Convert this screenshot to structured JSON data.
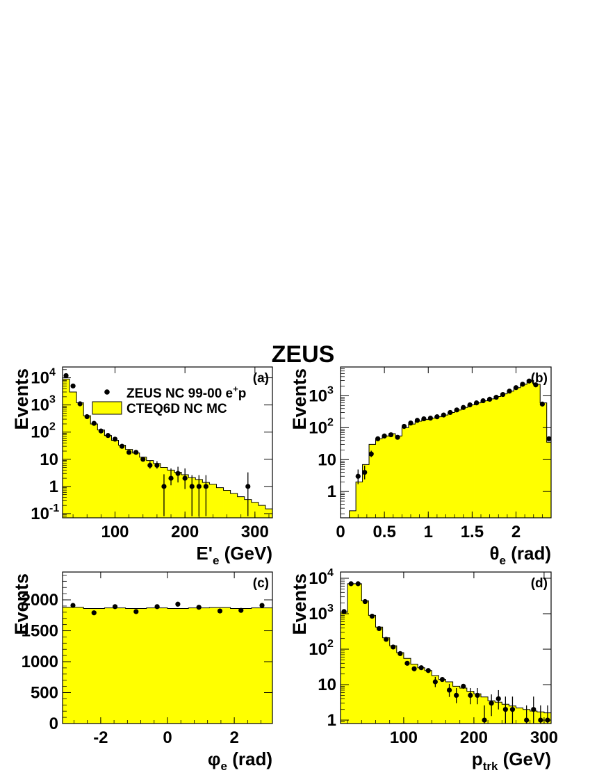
{
  "figure": {
    "title": "ZEUS"
  },
  "colors": {
    "mc_fill": "#ffff00",
    "data": "#000000"
  },
  "chart_data": [
    {
      "id": "a",
      "type": "bar",
      "panel_label": "(a)",
      "xlabel": "E'",
      "xlabel_sub": "e",
      "xlabel_unit": " (GeV)",
      "ylabel": "Events",
      "yscale": "log",
      "xlim": [
        25,
        325
      ],
      "ylim": [
        0.07,
        25000
      ],
      "xticks": [
        100,
        200,
        300
      ],
      "yticks": [
        {
          "v": 0.1,
          "mant": "10",
          "exp": "-1"
        },
        {
          "v": 1,
          "mant": "1",
          "exp": ""
        },
        {
          "v": 10,
          "mant": "10",
          "exp": ""
        },
        {
          "v": 100,
          "mant": "10",
          "exp": "2"
        },
        {
          "v": 1000,
          "mant": "10",
          "exp": "3"
        },
        {
          "v": 10000,
          "mant": "10",
          "exp": "4"
        }
      ],
      "legend": {
        "placement": "top-right",
        "data_label": "ZEUS NC 99-00 e",
        "data_label_sup": "+",
        "data_label_end": "p",
        "mc_label": "CTEQ6D NC MC"
      },
      "mc": {
        "edges": [
          25,
          35,
          45,
          55,
          65,
          75,
          85,
          95,
          105,
          115,
          125,
          135,
          145,
          155,
          165,
          175,
          185,
          195,
          205,
          215,
          225,
          235,
          245,
          255,
          265,
          275,
          285,
          295,
          305,
          315,
          325
        ],
        "values": [
          9000,
          3000,
          1200,
          400,
          200,
          120,
          75,
          50,
          33,
          23,
          17,
          12,
          9,
          7,
          5,
          4,
          3.3,
          2.7,
          2.1,
          1.8,
          1.4,
          1.2,
          0.9,
          0.72,
          0.55,
          0.42,
          0.33,
          0.26,
          0.2,
          0.15
        ]
      },
      "data": {
        "x": [
          30,
          40,
          50,
          60,
          70,
          80,
          90,
          100,
          110,
          120,
          130,
          140,
          150,
          160,
          170,
          180,
          190,
          200,
          210,
          220,
          230,
          290
        ],
        "y": [
          12000,
          5000,
          1100,
          370,
          210,
          110,
          75,
          55,
          30,
          18,
          18,
          10,
          6,
          6,
          1,
          2,
          3,
          2,
          1,
          1,
          1,
          1
        ],
        "err_lo": [
          0,
          0,
          0,
          0,
          0,
          0,
          0,
          0,
          0,
          0,
          0,
          0,
          1.5,
          1.5,
          0.92,
          0.9,
          1.6,
          1.2,
          0.92,
          0.92,
          0.92,
          0.92
        ],
        "err_hi": [
          0,
          0,
          0,
          0,
          0,
          0,
          0,
          0,
          0,
          0,
          0,
          0,
          2.5,
          2.5,
          1.8,
          2.6,
          2.3,
          2.6,
          1.6,
          1.6,
          1.6,
          2.3
        ]
      }
    },
    {
      "id": "b",
      "type": "bar",
      "panel_label": "(b)",
      "xlabel": "θ",
      "xlabel_sub": "e",
      "xlabel_unit": " (rad)",
      "ylabel": "Events",
      "yscale": "log",
      "xlim": [
        0,
        2.4
      ],
      "ylim": [
        0.15,
        8000
      ],
      "xticks": [
        0,
        0.5,
        1,
        1.5,
        2
      ],
      "yticks": [
        {
          "v": 1,
          "mant": "1",
          "exp": ""
        },
        {
          "v": 10,
          "mant": "10",
          "exp": ""
        },
        {
          "v": 100,
          "mant": "10",
          "exp": "2"
        },
        {
          "v": 1000,
          "mant": "10",
          "exp": "3"
        }
      ],
      "mc": {
        "edges": [
          0.1,
          0.175,
          0.25,
          0.325,
          0.4,
          0.475,
          0.55,
          0.625,
          0.7,
          0.775,
          0.85,
          0.925,
          1.0,
          1.075,
          1.15,
          1.225,
          1.3,
          1.375,
          1.45,
          1.525,
          1.6,
          1.675,
          1.75,
          1.825,
          1.9,
          1.975,
          2.05,
          2.125,
          2.2,
          2.275,
          2.35,
          2.425
        ],
        "values": [
          0.25,
          2,
          7,
          30,
          45,
          55,
          65,
          55,
          100,
          130,
          160,
          180,
          200,
          220,
          250,
          300,
          360,
          430,
          520,
          600,
          700,
          800,
          950,
          1150,
          1400,
          1800,
          2300,
          3000,
          2300,
          600,
          35
        ]
      },
      "data": {
        "x": [
          0.2,
          0.275,
          0.35,
          0.425,
          0.5,
          0.575,
          0.65,
          0.725,
          0.8,
          0.875,
          0.95,
          1.025,
          1.1,
          1.175,
          1.25,
          1.325,
          1.4,
          1.475,
          1.55,
          1.625,
          1.7,
          1.775,
          1.85,
          1.925,
          2.0,
          2.075,
          2.15,
          2.225,
          2.3,
          2.375
        ],
        "y": [
          3,
          4,
          15,
          45,
          55,
          60,
          50,
          110,
          140,
          170,
          190,
          200,
          220,
          250,
          300,
          360,
          430,
          520,
          600,
          700,
          780,
          900,
          1100,
          1400,
          1800,
          2300,
          2900,
          2200,
          550,
          45
        ],
        "err_lo": [
          1.3,
          1.6,
          3,
          0,
          0,
          0,
          0,
          0,
          0,
          0,
          0,
          0,
          0,
          0,
          0,
          0,
          0,
          0,
          0,
          0,
          0,
          0,
          0,
          0,
          0,
          0,
          0,
          0,
          0,
          0
        ],
        "err_hi": [
          1.9,
          2.5,
          4,
          0,
          0,
          0,
          0,
          0,
          0,
          0,
          0,
          0,
          0,
          0,
          0,
          0,
          0,
          0,
          0,
          0,
          0,
          0,
          0,
          0,
          0,
          0,
          0,
          0,
          0,
          0
        ]
      }
    },
    {
      "id": "c",
      "type": "bar",
      "panel_label": "(c)",
      "xlabel": "φ",
      "xlabel_sub": "e",
      "xlabel_unit": " (rad)",
      "ylabel": "Events",
      "yscale": "linear",
      "xlim": [
        -3.1416,
        3.1416
      ],
      "ylim": [
        0,
        2450
      ],
      "xticks": [
        -2,
        0,
        2
      ],
      "yticks": [
        {
          "v": 0,
          "mant": "0",
          "exp": ""
        },
        {
          "v": 500,
          "mant": "500",
          "exp": ""
        },
        {
          "v": 1000,
          "mant": "1000",
          "exp": ""
        },
        {
          "v": 1500,
          "mant": "1500",
          "exp": ""
        },
        {
          "v": 2000,
          "mant": "2000",
          "exp": ""
        }
      ],
      "mc": {
        "edges": [
          -3.1416,
          -2.5133,
          -1.885,
          -1.2566,
          -0.6283,
          0,
          0.6283,
          1.2566,
          1.885,
          2.5133,
          3.1416
        ],
        "values": [
          1880,
          1860,
          1870,
          1860,
          1870,
          1860,
          1870,
          1875,
          1860,
          1870
        ]
      },
      "data": {
        "x": [
          -2.83,
          -2.2,
          -1.57,
          -0.94,
          -0.31,
          0.31,
          0.94,
          1.57,
          2.2,
          2.83
        ],
        "y": [
          1910,
          1790,
          1890,
          1810,
          1890,
          1930,
          1880,
          1820,
          1830,
          1910
        ],
        "err_lo": [
          0,
          0,
          0,
          0,
          0,
          0,
          0,
          0,
          0,
          0
        ],
        "err_hi": [
          0,
          0,
          0,
          0,
          0,
          0,
          0,
          0,
          0,
          0
        ]
      }
    },
    {
      "id": "d",
      "type": "bar",
      "panel_label": "(d)",
      "xlabel": "p",
      "xlabel_sub": "trk",
      "xlabel_unit": " (GeV)",
      "ylabel": "Events",
      "yscale": "log",
      "xlim": [
        10,
        310
      ],
      "ylim": [
        0.8,
        15000
      ],
      "xticks": [
        100,
        200,
        300
      ],
      "yticks": [
        {
          "v": 1,
          "mant": "1",
          "exp": ""
        },
        {
          "v": 10,
          "mant": "10",
          "exp": ""
        },
        {
          "v": 100,
          "mant": "10",
          "exp": "2"
        },
        {
          "v": 1000,
          "mant": "10",
          "exp": "3"
        },
        {
          "v": 10000,
          "mant": "10",
          "exp": "4"
        }
      ],
      "mc": {
        "edges": [
          10,
          20,
          30,
          40,
          50,
          60,
          70,
          80,
          90,
          100,
          110,
          120,
          130,
          140,
          150,
          160,
          170,
          180,
          190,
          200,
          210,
          220,
          230,
          240,
          250,
          260,
          270,
          280,
          290,
          300,
          310
        ],
        "values": [
          1100,
          7000,
          7000,
          2300,
          900,
          420,
          210,
          125,
          80,
          55,
          38,
          30,
          25,
          18,
          14,
          12,
          9,
          8,
          6.5,
          5.5,
          4.5,
          3.5,
          3.2,
          2.8,
          2.5,
          2.2,
          2,
          1.8,
          1.7,
          1.6
        ]
      },
      "data": {
        "x": [
          15,
          25,
          35,
          45,
          55,
          65,
          75,
          85,
          95,
          105,
          115,
          125,
          135,
          145,
          155,
          165,
          175,
          185,
          195,
          205,
          215,
          225,
          235,
          245,
          255,
          275,
          285,
          295,
          305
        ],
        "y": [
          1150,
          7000,
          7000,
          2200,
          850,
          380,
          190,
          115,
          75,
          40,
          28,
          30,
          25,
          12,
          14,
          7,
          5,
          9,
          5,
          5,
          1,
          3,
          4,
          2,
          2,
          1,
          2,
          1,
          1
        ],
        "err_lo": [
          0,
          0,
          0,
          0,
          0,
          0,
          0,
          0,
          0,
          0,
          0,
          0,
          0,
          3.5,
          0,
          2.5,
          2,
          0,
          2.2,
          2.2,
          0.92,
          1.7,
          2,
          1.3,
          1.3,
          0.92,
          1.3,
          0.92,
          0.92
        ],
        "err_hi": [
          0,
          0,
          0,
          0,
          0,
          0,
          0,
          0,
          0,
          0,
          0,
          0,
          0,
          4.5,
          0,
          3.5,
          3,
          0,
          3,
          3,
          1.6,
          2.3,
          3,
          2.6,
          2.6,
          1.6,
          2.6,
          1.6,
          1.6
        ]
      }
    }
  ]
}
